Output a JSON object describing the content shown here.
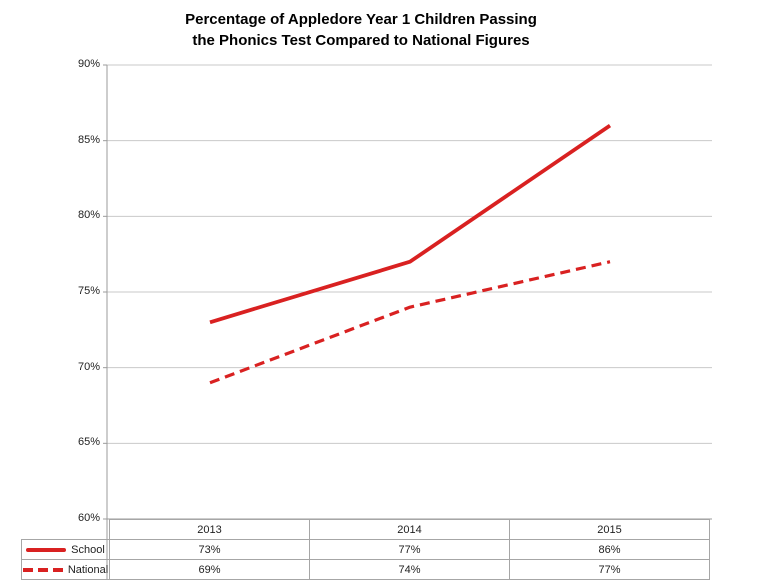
{
  "chart_data": {
    "type": "line",
    "title": "Percentage of Appledore Year 1 Children Passing the Phonics Test Compared to National Figures",
    "title_lines": [
      "Percentage of Appledore Year 1 Children Passing",
      "the Phonics Test Compared to National Figures"
    ],
    "categories": [
      "2013",
      "2014",
      "2015"
    ],
    "series": [
      {
        "name": "School",
        "line_style": "solid",
        "values": [
          73,
          77,
          86
        ],
        "value_labels": [
          "73%",
          "77%",
          "86%"
        ]
      },
      {
        "name": "National",
        "line_style": "dashed",
        "values": [
          69,
          74,
          77
        ],
        "value_labels": [
          "69%",
          "74%",
          "77%"
        ]
      }
    ],
    "xlabel": "",
    "ylabel": "",
    "ylim": [
      60,
      90
    ],
    "ytick_step": 5,
    "ytick_labels": [
      "90%",
      "85%",
      "80%",
      "75%",
      "70%",
      "65%",
      "60%"
    ],
    "grid": "horizontal-only",
    "legend_position": "table-bottom-left",
    "colors": {
      "series_red": "#d92121",
      "gridline": "#c9c9c9",
      "axis": "#9b9b9b",
      "table_border": "#a6a6a6",
      "title_text": "#000000",
      "label_text": "#1f1f1f"
    }
  }
}
